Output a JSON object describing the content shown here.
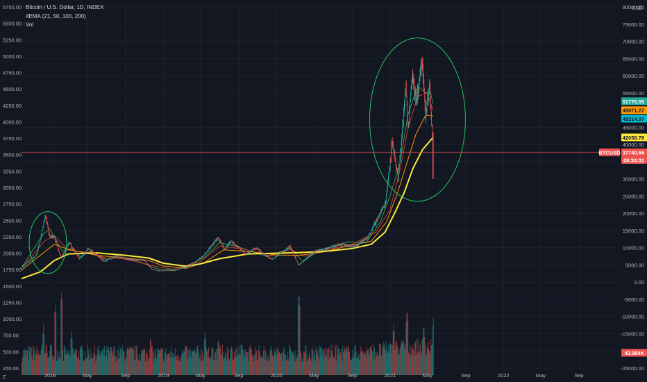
{
  "header": {
    "symbol_line": "Bitcoin / U.S. Dollar, 1D, INDEX",
    "indicator_line": "4EMA (21, 50, 100, 200)",
    "volume_line": "Vol"
  },
  "currency": "USD",
  "corner_label": "Z",
  "colors": {
    "background": "#131722",
    "up": "#26a69a",
    "down": "#ef5350",
    "ema_200": "#ffeb3b",
    "ema_100": "#ff9800",
    "ema_50": "#f44336",
    "ema_21": "#4caf50",
    "highlight_circle": "#22c55e",
    "last_price_line": "#ef5350"
  },
  "chart_data": {
    "type": "line",
    "title": "Bitcoin / U.S. Dollar, 1D, INDEX",
    "left_axis": {
      "ticks": [
        "5750.00",
        "5500.00",
        "5250.00",
        "5000.00",
        "4750.00",
        "4500.00",
        "4250.00",
        "4000.00",
        "3750.00",
        "3500.00",
        "3250.00",
        "3000.00",
        "2750.00",
        "2500.00",
        "2250.00",
        "2000.00",
        "1750.00",
        "1500.00",
        "1250.00",
        "1000.00",
        "750.00",
        "500.00",
        "250.00"
      ],
      "range": [
        250,
        5750
      ]
    },
    "right_axis": {
      "ticks": [
        "80000.00",
        "75000.00",
        "70000.00",
        "65000.00",
        "60000.00",
        "55000.00",
        "50000.00",
        "45000.00",
        "40000.00",
        "35000.00",
        "30000.00",
        "25000.00",
        "20000.00",
        "15000.00",
        "10000.00",
        "5000.00",
        "0.00",
        "-5000.00",
        "-10000.00",
        "-15000.00",
        "-20000.00",
        "-25000.00"
      ],
      "range": [
        -25000,
        80000
      ]
    },
    "x_axis": {
      "labels": [
        "2018",
        "May",
        "Sep",
        "2019",
        "May",
        "Sep",
        "2020",
        "May",
        "Sep",
        "2021",
        "May",
        "Sep",
        "2022",
        "May",
        "Sep"
      ],
      "range": [
        "2017-10-01",
        "2022-12-31"
      ]
    },
    "price_tags": [
      {
        "value": "51776.55",
        "bg": "#26a69a",
        "fg": "#ffffff"
      },
      {
        "value": "49971.27",
        "bg": "#ff9800",
        "fg": "#131722"
      },
      {
        "value": "48314.07",
        "bg": "#00bcd4",
        "fg": "#131722"
      },
      {
        "value": "42058.78",
        "bg": "#ffeb3b",
        "fg": "#131722"
      },
      {
        "value": "37740.55",
        "bg": "#ef5350",
        "fg": "#ffffff"
      },
      {
        "value": "08:30:31",
        "bg": "#ef5350",
        "fg": "#ffffff"
      },
      {
        "value": "43.984K",
        "bg": "#ef5350",
        "fg": "#ffffff"
      }
    ],
    "symbol_tag": "BTCUSD",
    "last_price": 37740.55,
    "price_series": [
      [
        "2017-10-01",
        4300
      ],
      [
        "2017-11-01",
        6500
      ],
      [
        "2017-11-20",
        8200
      ],
      [
        "2017-12-07",
        15000
      ],
      [
        "2017-12-17",
        19500
      ],
      [
        "2017-12-30",
        13500
      ],
      [
        "2018-01-15",
        13000
      ],
      [
        "2018-02-06",
        7000
      ],
      [
        "2018-03-05",
        11500
      ],
      [
        "2018-04-06",
        6700
      ],
      [
        "2018-05-05",
        9800
      ],
      [
        "2018-06-25",
        6000
      ],
      [
        "2018-08-01",
        7600
      ],
      [
        "2018-09-15",
        6500
      ],
      [
        "2018-11-01",
        6400
      ],
      [
        "2018-11-25",
        3800
      ],
      [
        "2018-12-15",
        3300
      ],
      [
        "2019-02-07",
        3400
      ],
      [
        "2019-04-02",
        4900
      ],
      [
        "2019-05-14",
        8000
      ],
      [
        "2019-06-26",
        12900
      ],
      [
        "2019-07-17",
        9500
      ],
      [
        "2019-08-06",
        11900
      ],
      [
        "2019-09-25",
        8200
      ],
      [
        "2019-10-26",
        9900
      ],
      [
        "2019-12-17",
        6600
      ],
      [
        "2020-02-13",
        10400
      ],
      [
        "2020-03-12",
        4900
      ],
      [
        "2020-04-30",
        8800
      ],
      [
        "2020-06-01",
        9500
      ],
      [
        "2020-07-27",
        11000
      ],
      [
        "2020-09-04",
        10200
      ],
      [
        "2020-10-21",
        12900
      ],
      [
        "2020-11-24",
        19000
      ],
      [
        "2020-12-17",
        23000
      ],
      [
        "2021-01-08",
        41000
      ],
      [
        "2021-01-27",
        30000
      ],
      [
        "2021-02-21",
        57000
      ],
      [
        "2021-02-28",
        45000
      ],
      [
        "2021-03-13",
        61000
      ],
      [
        "2021-03-25",
        52000
      ],
      [
        "2021-04-14",
        64500
      ],
      [
        "2021-04-25",
        48000
      ],
      [
        "2021-05-08",
        58000
      ],
      [
        "2021-05-12",
        49500
      ],
      [
        "2021-05-15",
        46000
      ],
      [
        "2021-05-18",
        42000
      ],
      [
        "2021-05-19",
        37740.55
      ]
    ],
    "ema_200_series": [
      [
        "2017-10-01",
        1000
      ],
      [
        "2017-12-01",
        3000
      ],
      [
        "2018-01-15",
        6300
      ],
      [
        "2018-03-01",
        8200
      ],
      [
        "2018-06-01",
        8500
      ],
      [
        "2018-09-01",
        7800
      ],
      [
        "2018-11-15",
        7000
      ],
      [
        "2019-01-01",
        5500
      ],
      [
        "2019-03-15",
        4600
      ],
      [
        "2019-05-01",
        5300
      ],
      [
        "2019-07-01",
        6800
      ],
      [
        "2019-10-01",
        8200
      ],
      [
        "2020-01-01",
        8400
      ],
      [
        "2020-03-15",
        8600
      ],
      [
        "2020-06-01",
        8900
      ],
      [
        "2020-09-01",
        9800
      ],
      [
        "2020-11-01",
        11000
      ],
      [
        "2020-12-15",
        14500
      ],
      [
        "2021-01-15",
        20000
      ],
      [
        "2021-02-15",
        26000
      ],
      [
        "2021-03-15",
        33000
      ],
      [
        "2021-04-15",
        38500
      ],
      [
        "2021-05-19",
        42058.78
      ]
    ],
    "ema_100_series": [
      [
        "2017-10-01",
        3500
      ],
      [
        "2017-12-10",
        8500
      ],
      [
        "2018-01-15",
        11000
      ],
      [
        "2018-03-01",
        9500
      ],
      [
        "2018-06-01",
        7800
      ],
      [
        "2018-09-01",
        7000
      ],
      [
        "2018-11-15",
        6300
      ],
      [
        "2019-01-01",
        4700
      ],
      [
        "2019-03-15",
        4000
      ],
      [
        "2019-05-15",
        5800
      ],
      [
        "2019-07-15",
        9400
      ],
      [
        "2019-10-15",
        8800
      ],
      [
        "2020-01-01",
        7900
      ],
      [
        "2020-03-15",
        7800
      ],
      [
        "2020-06-01",
        8800
      ],
      [
        "2020-09-01",
        10800
      ],
      [
        "2020-11-01",
        11900
      ],
      [
        "2020-12-20",
        17500
      ],
      [
        "2021-01-25",
        26000
      ],
      [
        "2021-02-25",
        35000
      ],
      [
        "2021-03-25",
        43000
      ],
      [
        "2021-04-25",
        48500
      ],
      [
        "2021-05-19",
        48314.07
      ]
    ],
    "ema_50_series": [
      [
        "2017-10-01",
        4000
      ],
      [
        "2017-12-15",
        12000
      ],
      [
        "2018-01-15",
        13500
      ],
      [
        "2018-03-01",
        9300
      ],
      [
        "2018-05-01",
        8700
      ],
      [
        "2018-07-01",
        7000
      ],
      [
        "2018-09-01",
        6700
      ],
      [
        "2018-12-01",
        4700
      ],
      [
        "2019-02-01",
        3700
      ],
      [
        "2019-05-01",
        6000
      ],
      [
        "2019-07-01",
        10500
      ],
      [
        "2019-09-15",
        9600
      ],
      [
        "2019-12-15",
        7500
      ],
      [
        "2020-02-15",
        9500
      ],
      [
        "2020-04-01",
        7500
      ],
      [
        "2020-06-15",
        9500
      ],
      [
        "2020-09-01",
        11000
      ],
      [
        "2020-11-15",
        14500
      ],
      [
        "2020-12-31",
        21000
      ],
      [
        "2021-01-31",
        32000
      ],
      [
        "2021-02-28",
        45000
      ],
      [
        "2021-03-31",
        54000
      ],
      [
        "2021-04-30",
        55000
      ],
      [
        "2021-05-19",
        49971.27
      ]
    ],
    "ema_21_series": [
      [
        "2017-10-01",
        4200
      ],
      [
        "2017-12-10",
        14000
      ],
      [
        "2017-12-31",
        15500
      ],
      [
        "2018-02-10",
        9000
      ],
      [
        "2018-03-10",
        9800
      ],
      [
        "2018-04-10",
        7400
      ],
      [
        "2018-05-10",
        9000
      ],
      [
        "2018-07-01",
        6500
      ],
      [
        "2018-08-01",
        7300
      ],
      [
        "2018-10-01",
        6500
      ],
      [
        "2018-12-10",
        3900
      ],
      [
        "2019-02-15",
        3500
      ],
      [
        "2019-05-15",
        7200
      ],
      [
        "2019-07-01",
        11500
      ],
      [
        "2019-09-01",
        10200
      ],
      [
        "2019-12-01",
        7400
      ],
      [
        "2020-02-15",
        9900
      ],
      [
        "2020-03-25",
        6000
      ],
      [
        "2020-05-15",
        9100
      ],
      [
        "2020-08-15",
        11700
      ],
      [
        "2020-10-15",
        11400
      ],
      [
        "2020-11-30",
        17500
      ],
      [
        "2020-12-31",
        25000
      ],
      [
        "2021-01-31",
        34000
      ],
      [
        "2021-02-28",
        49000
      ],
      [
        "2021-03-31",
        57000
      ],
      [
        "2021-04-25",
        55000
      ],
      [
        "2021-05-10",
        55500
      ],
      [
        "2021-05-19",
        51776.55
      ]
    ],
    "volume_note": "volume histogram along bottom (left axis scale), peaks near 2018-02, 2020-03, 2021-02",
    "volume_spikes": [
      [
        "2017-12-10",
        880
      ],
      [
        "2018-01-17",
        1200
      ],
      [
        "2018-02-06",
        1380
      ],
      [
        "2018-03-10",
        800
      ],
      [
        "2018-11-20",
        720
      ],
      [
        "2019-05-14",
        780
      ],
      [
        "2019-06-26",
        700
      ],
      [
        "2020-03-12",
        1380
      ],
      [
        "2021-01-11",
        900
      ],
      [
        "2021-02-23",
        1120
      ],
      [
        "2021-04-18",
        900
      ],
      [
        "2021-05-19",
        980
      ]
    ],
    "annotations": [
      {
        "shape": "ellipse",
        "around": "2017-12 peak"
      },
      {
        "shape": "ellipse",
        "around": "2021 peak"
      }
    ],
    "grid": true
  }
}
